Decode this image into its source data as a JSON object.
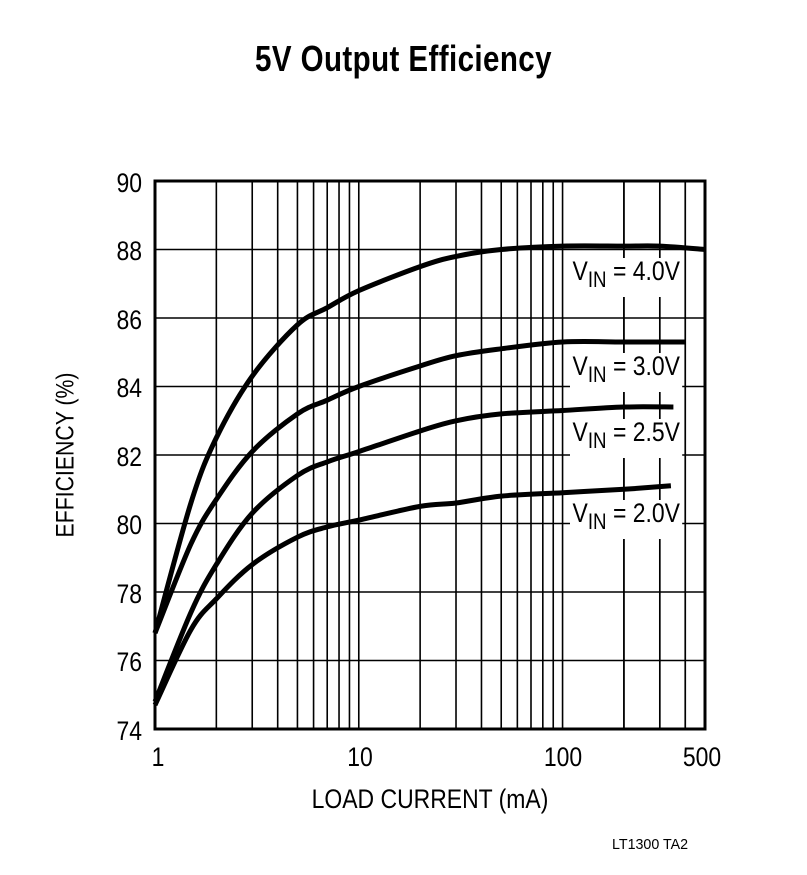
{
  "title": "5V Output Efficiency",
  "footnote": "LT1300 TA2",
  "axes": {
    "xlabel": "LOAD CURRENT (mA)",
    "ylabel": "EFFICIENCY (%)",
    "xticks": [
      "1",
      "10",
      "100",
      "500"
    ],
    "yticks": [
      "90",
      "88",
      "86",
      "84",
      "82",
      "80",
      "78",
      "76",
      "74"
    ]
  },
  "series_labels": [
    {
      "prefix": "V",
      "sub": "IN",
      "suffix": " = 4.0V"
    },
    {
      "prefix": "V",
      "sub": "IN",
      "suffix": " = 3.0V"
    },
    {
      "prefix": "V",
      "sub": "IN",
      "suffix": " = 2.5V"
    },
    {
      "prefix": "V",
      "sub": "IN",
      "suffix": " = 2.0V"
    }
  ],
  "chart_data": {
    "type": "line",
    "title": "5V Output Efficiency",
    "xlabel": "LOAD CURRENT (mA)",
    "ylabel": "EFFICIENCY (%)",
    "xscale": "log",
    "xlim": [
      1,
      500
    ],
    "ylim": [
      74,
      90
    ],
    "xticks": [
      1,
      10,
      100,
      500
    ],
    "yticks": [
      74,
      76,
      78,
      80,
      82,
      84,
      86,
      88,
      90
    ],
    "grid": true,
    "legend": "inline labels at right",
    "series": [
      {
        "name": "VIN = 4.0V",
        "x": [
          1,
          1.5,
          2,
          3,
          5,
          7,
          10,
          20,
          30,
          50,
          100,
          200,
          300,
          500
        ],
        "y": [
          76.8,
          80.6,
          82.5,
          84.3,
          85.8,
          86.3,
          86.8,
          87.5,
          87.8,
          88.0,
          88.1,
          88.1,
          88.1,
          88.0
        ]
      },
      {
        "name": "VIN = 3.0V",
        "x": [
          1,
          1.5,
          2,
          3,
          5,
          7,
          10,
          20,
          30,
          50,
          100,
          200,
          400
        ],
        "y": [
          76.8,
          79.4,
          80.7,
          82.1,
          83.2,
          83.6,
          84.0,
          84.6,
          84.9,
          85.1,
          85.3,
          85.3,
          85.3
        ]
      },
      {
        "name": "VIN = 2.5V",
        "x": [
          1,
          1.5,
          2,
          3,
          5,
          7,
          10,
          20,
          30,
          50,
          100,
          200,
          350
        ],
        "y": [
          74.8,
          77.4,
          78.8,
          80.3,
          81.4,
          81.8,
          82.1,
          82.7,
          83.0,
          83.2,
          83.3,
          83.4,
          83.4
        ]
      },
      {
        "name": "VIN = 2.0V",
        "x": [
          1,
          1.5,
          2,
          3,
          5,
          7,
          10,
          20,
          30,
          50,
          100,
          200,
          340
        ],
        "y": [
          74.7,
          76.9,
          77.8,
          78.8,
          79.6,
          79.9,
          80.1,
          80.5,
          80.6,
          80.8,
          80.9,
          81.0,
          81.1
        ]
      }
    ]
  }
}
